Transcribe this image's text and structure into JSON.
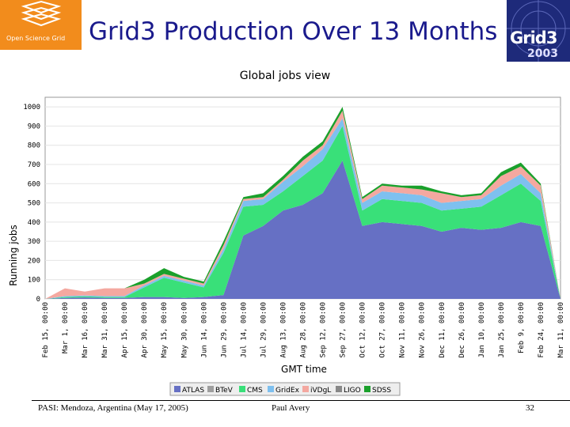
{
  "header": {
    "osg_logo_text": "Open Science Grid",
    "title": "Grid3 Production Over 13 Months",
    "grid3_logo_text": "Grid3",
    "grid3_logo_year": "2003"
  },
  "footer": {
    "left": "PASI: Mendoza, Argentina (May 17, 2005)",
    "center": "Paul Avery",
    "page": "32"
  },
  "colors": {
    "ATLAS": "#6670c4",
    "BTeV": "#9e9e9e",
    "CMS": "#39e079",
    "GridEx": "#7ec0ef",
    "iVDgL": "#f4a8a0",
    "LIGO": "#888888",
    "SDSS": "#1aa02b"
  },
  "chart_data": {
    "type": "area",
    "title": "Global jobs view",
    "xlabel": "GMT time",
    "ylabel": "Running jobs",
    "ylim": [
      0,
      1050
    ],
    "yticks": [
      "0",
      "100",
      "200",
      "300",
      "400",
      "500",
      "600",
      "700",
      "800",
      "900",
      "1000"
    ],
    "x": [
      "Feb 15, 00:00",
      "Mar 1, 00:00",
      "Mar 16, 00:00",
      "Mar 31, 00:00",
      "Apr 15, 00:00",
      "Apr 30, 00:00",
      "May 15, 00:00",
      "May 30, 00:00",
      "Jun 14, 00:00",
      "Jun 29, 00:00",
      "Jul 14, 00:00",
      "Jul 29, 00:00",
      "Aug 13, 00:00",
      "Aug 28, 00:00",
      "Sep 12, 00:00",
      "Sep 27, 00:00",
      "Oct 12, 00:00",
      "Oct 27, 00:00",
      "Nov 11, 00:00",
      "Nov 26, 00:00",
      "Dec 11, 00:00",
      "Dec 26, 00:00",
      "Jan 10, 00:00",
      "Jan 25, 00:00",
      "Feb 9, 00:00",
      "Feb 24, 00:00",
      "Mar 11, 00:00"
    ],
    "legend": [
      "ATLAS",
      "BTeV",
      "CMS",
      "GridEx",
      "iVDgL",
      "LIGO",
      "SDSS"
    ],
    "legend_position": "bottom",
    "stacked": true,
    "series": [
      {
        "name": "ATLAS",
        "values": [
          0,
          5,
          8,
          5,
          5,
          10,
          10,
          5,
          10,
          20,
          330,
          380,
          460,
          490,
          550,
          720,
          380,
          400,
          390,
          380,
          350,
          370,
          360,
          370,
          400,
          380,
          0
        ]
      },
      {
        "name": "BTeV",
        "values": [
          0,
          0,
          0,
          0,
          0,
          0,
          0,
          0,
          0,
          0,
          0,
          0,
          0,
          0,
          0,
          0,
          0,
          0,
          0,
          0,
          0,
          0,
          0,
          0,
          0,
          0,
          0
        ]
      },
      {
        "name": "CMS",
        "values": [
          0,
          5,
          5,
          5,
          5,
          50,
          100,
          80,
          50,
          220,
          150,
          110,
          100,
          150,
          170,
          180,
          80,
          120,
          120,
          120,
          110,
          100,
          120,
          170,
          200,
          130,
          0
        ]
      },
      {
        "name": "GridEx",
        "values": [
          0,
          5,
          5,
          5,
          5,
          10,
          10,
          10,
          10,
          20,
          30,
          30,
          50,
          50,
          60,
          40,
          40,
          40,
          40,
          40,
          40,
          40,
          40,
          50,
          50,
          40,
          0
        ]
      },
      {
        "name": "iVDgL",
        "values": [
          0,
          40,
          20,
          40,
          40,
          10,
          10,
          10,
          10,
          20,
          10,
          10,
          10,
          30,
          20,
          40,
          20,
          30,
          30,
          30,
          50,
          20,
          20,
          50,
          40,
          40,
          0
        ]
      },
      {
        "name": "LIGO",
        "values": [
          0,
          0,
          0,
          0,
          0,
          0,
          0,
          0,
          0,
          0,
          0,
          0,
          0,
          0,
          0,
          0,
          0,
          0,
          0,
          0,
          0,
          0,
          0,
          0,
          0,
          0,
          0
        ]
      },
      {
        "name": "SDSS",
        "values": [
          0,
          0,
          0,
          0,
          0,
          20,
          30,
          10,
          10,
          20,
          10,
          20,
          20,
          20,
          20,
          20,
          10,
          10,
          10,
          20,
          10,
          10,
          10,
          20,
          20,
          10,
          0
        ]
      }
    ]
  }
}
